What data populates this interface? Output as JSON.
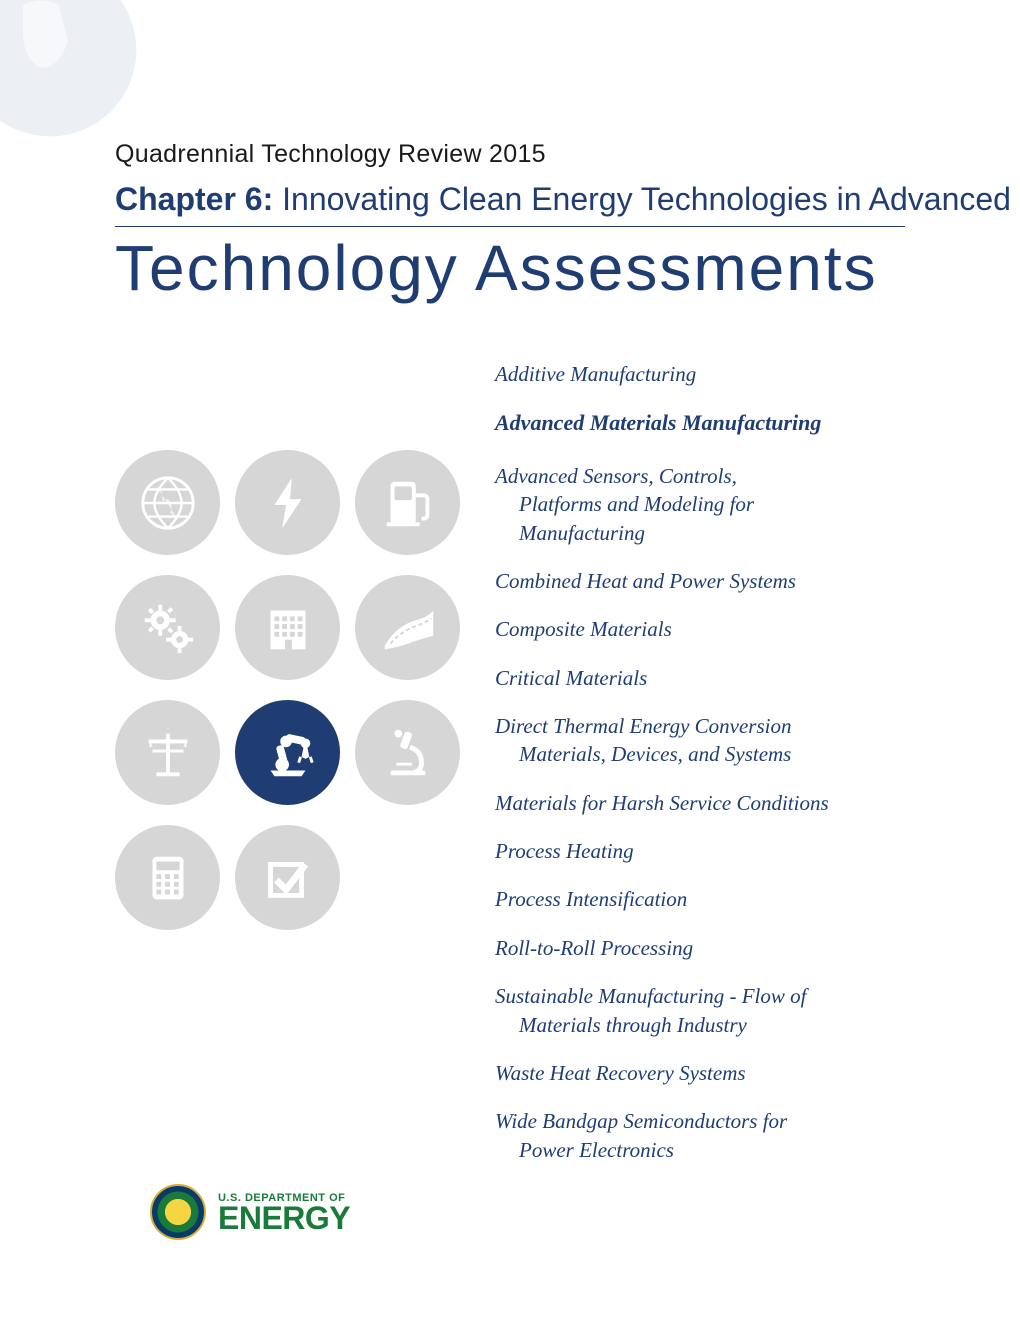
{
  "colors": {
    "primary_blue": "#1f3d73",
    "icon_gray": "#d6d6d6",
    "icon_white": "#ffffff",
    "logo_green": "#1a7a3a",
    "text_black": "#1a1a1a",
    "background": "#ffffff"
  },
  "header": {
    "review_title": "Quadrennial Technology Review 2015",
    "chapter_label": "Chapter 6:",
    "chapter_desc": "  Innovating Clean Energy Technologies in Advanced Manufacturing",
    "main_title": "Technology Assessments"
  },
  "icons": [
    {
      "name": "globe-icon",
      "active": false
    },
    {
      "name": "lightning-icon",
      "active": false
    },
    {
      "name": "fuel-pump-icon",
      "active": false
    },
    {
      "name": "gears-icon",
      "active": false
    },
    {
      "name": "building-icon",
      "active": false
    },
    {
      "name": "road-icon",
      "active": false
    },
    {
      "name": "power-line-icon",
      "active": false
    },
    {
      "name": "robot-arm-icon",
      "active": true
    },
    {
      "name": "microscope-icon",
      "active": false
    },
    {
      "name": "calculator-icon",
      "active": false
    },
    {
      "name": "checkbox-icon",
      "active": false
    }
  ],
  "topics": [
    {
      "text": "Additive Manufacturing",
      "highlighted": false
    },
    {
      "text": "Advanced Materials Manufacturing",
      "highlighted": true
    },
    {
      "text": "Advanced Sensors, Controls,",
      "indent_lines": [
        "Platforms and Modeling for",
        "Manufacturing"
      ],
      "highlighted": false
    },
    {
      "text": "Combined Heat and Power Systems",
      "highlighted": false
    },
    {
      "text": "Composite Materials",
      "highlighted": false
    },
    {
      "text": "Critical Materials",
      "highlighted": false
    },
    {
      "text": "Direct Thermal Energy Conversion",
      "indent_lines": [
        "Materials, Devices, and Systems"
      ],
      "highlighted": false
    },
    {
      "text": "Materials for Harsh Service Conditions",
      "highlighted": false
    },
    {
      "text": "Process Heating",
      "highlighted": false
    },
    {
      "text": "Process Intensification",
      "highlighted": false
    },
    {
      "text": "Roll-to-Roll Processing",
      "highlighted": false
    },
    {
      "text": "Sustainable Manufacturing - Flow of",
      "indent_lines": [
        "Materials through Industry"
      ],
      "highlighted": false
    },
    {
      "text": "Waste Heat Recovery Systems",
      "highlighted": false
    },
    {
      "text": "Wide Bandgap Semiconductors for",
      "indent_lines": [
        "Power Electronics"
      ],
      "highlighted": false
    }
  ],
  "logo": {
    "dept": "U.S. DEPARTMENT OF",
    "name": "ENERGY"
  }
}
